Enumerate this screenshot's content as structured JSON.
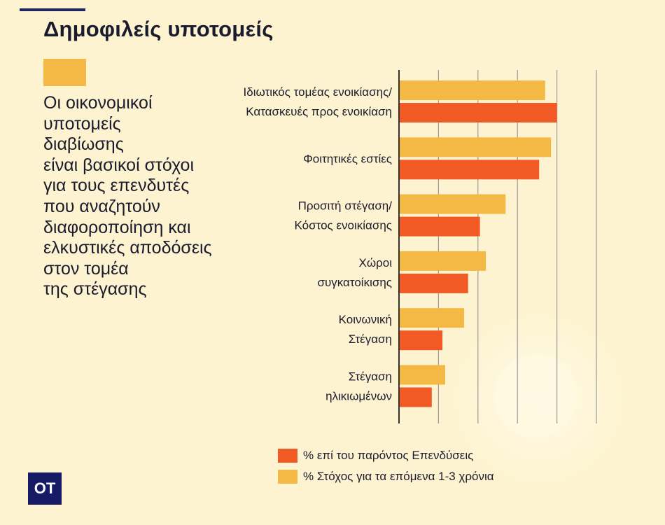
{
  "title": "Δημοφιλείς υποτομείς",
  "subtitle_lines": [
    "Οι οικονομικοί",
    "υποτομείς",
    "διαβίωσης",
    "είναι βασικοί στόχοι",
    "για τους επενδυτές",
    "που αναζητούν",
    "διαφοροποίηση και",
    "ελκυστικές αποδόσεις",
    "στον τομέα",
    "της στέγασης"
  ],
  "logo": "OT",
  "colors": {
    "background": "#fdf3d0",
    "target": "#f4b844",
    "current": "#f15a24",
    "grid": "#9a9a9a",
    "axis": "#333333",
    "navy": "#141a66"
  },
  "chart_data": {
    "type": "bar",
    "orientation": "horizontal",
    "categories": [
      [
        "Ιδιωτικός τομέας ενοικίασης/",
        "Κατασκευές προς ενοικίαση"
      ],
      [
        "Φοιτητικές εστίες"
      ],
      [
        "Προσιτή στέγαση/",
        "Κόστος ενοικίασης"
      ],
      [
        "Χώροι",
        "συγκατοίκισης"
      ],
      [
        "Κοινωνική",
        "Στέγαση"
      ],
      [
        "Στέγαση",
        "ηλικιωμένων"
      ]
    ],
    "series": [
      {
        "name": "% Στόχος για τα επόμενα 1-3 χρόνια",
        "color": "#f4b844",
        "values": [
          37,
          38.5,
          27,
          22,
          16.5,
          11.7
        ]
      },
      {
        "name": "% επί του παρόντος Επενδύσεις",
        "color": "#f15a24",
        "values": [
          40,
          35.5,
          20.5,
          17.5,
          11,
          8.3
        ]
      }
    ],
    "xlim": [
      0,
      50
    ],
    "grid": true,
    "gridlines_at": [
      10,
      20,
      30,
      40,
      50
    ],
    "tick_labels_shown": false,
    "legend": [
      {
        "label": "% επί του παρόντος Επενδύσεις",
        "color": "#f15a24"
      },
      {
        "label": "% Στόχος για τα επόμενα 1-3 χρόνια",
        "color": "#f4b844"
      }
    ],
    "legend_position": "bottom"
  }
}
